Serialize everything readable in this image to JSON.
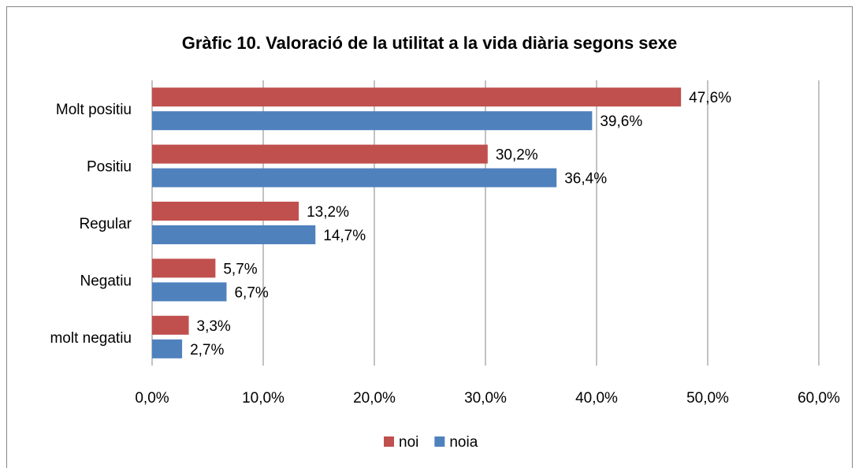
{
  "chart_data": {
    "type": "bar",
    "orientation": "horizontal",
    "title": "Gràfic 10. Valoració de la utilitat a la vida diària segons sexe",
    "categories": [
      "Molt positiu",
      "Positiu",
      "Regular",
      "Negatiu",
      "molt negatiu"
    ],
    "series": [
      {
        "name": "noi",
        "color": "#c0504d",
        "values": [
          47.6,
          30.2,
          13.2,
          5.7,
          3.3
        ],
        "value_labels": [
          "47,6%",
          "30,2%",
          "13,2%",
          "5,7%",
          "3,3%"
        ]
      },
      {
        "name": "noia",
        "color": "#4f81bd",
        "values": [
          39.6,
          36.4,
          14.7,
          6.7,
          2.7
        ],
        "value_labels": [
          "39,6%",
          "36,4%",
          "14,7%",
          "6,7%",
          "2,7%"
        ]
      }
    ],
    "xlim": [
      0,
      60
    ],
    "xticks": [
      {
        "value": 0,
        "label": "0,0%"
      },
      {
        "value": 10,
        "label": "10,0%"
      },
      {
        "value": 20,
        "label": "20,0%"
      },
      {
        "value": 30,
        "label": "30,0%"
      },
      {
        "value": 40,
        "label": "40,0%"
      },
      {
        "value": 50,
        "label": "50,0%"
      },
      {
        "value": 60,
        "label": "60,0%"
      }
    ],
    "grid": true,
    "legend": "bottom"
  }
}
